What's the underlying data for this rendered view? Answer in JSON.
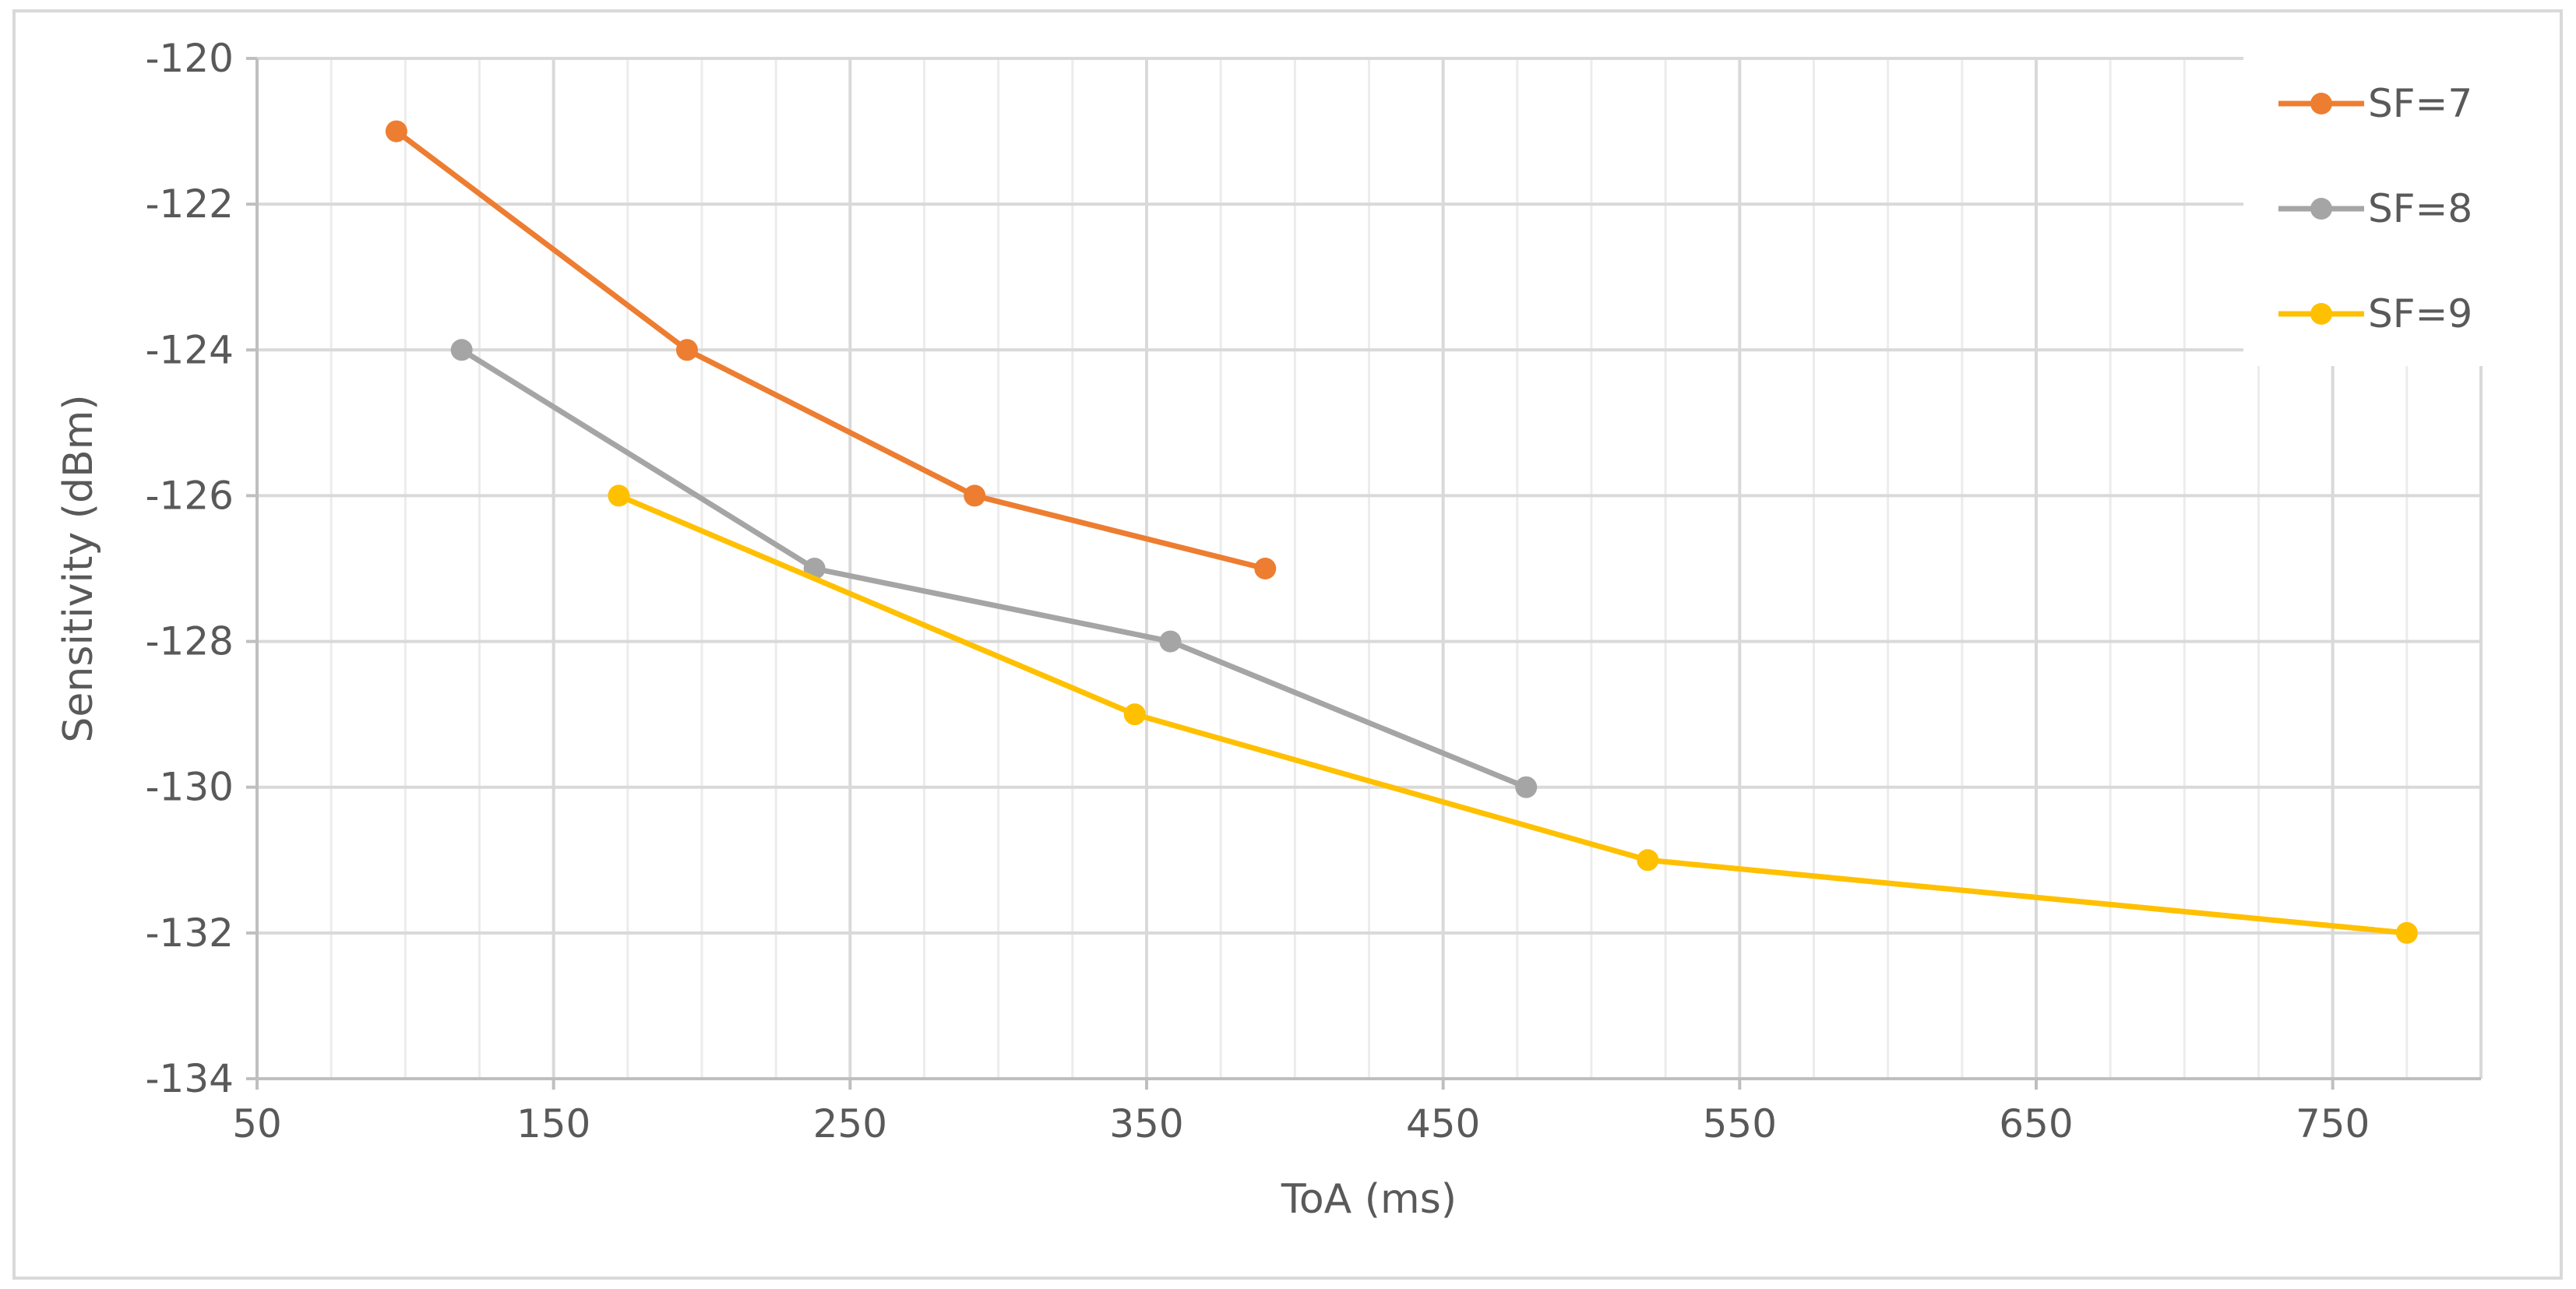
{
  "chart_data": {
    "type": "line",
    "title": "",
    "xlabel": "ToA  (ms)",
    "ylabel": "Sensitivity  (dBm)",
    "xlim": [
      50,
      800
    ],
    "ylim": [
      -134,
      -120
    ],
    "x_ticks": [
      50,
      150,
      250,
      350,
      450,
      550,
      650,
      750
    ],
    "y_ticks": [
      -120,
      -122,
      -124,
      -126,
      -128,
      -130,
      -132,
      -134
    ],
    "x_minor_step": 25,
    "y_minor_step": 2,
    "grid": true,
    "legend_position": "top-right",
    "series": [
      {
        "name": "SF=7",
        "color": "#ED7D31",
        "x": [
          97,
          195,
          292,
          390
        ],
        "y": [
          -121,
          -124,
          -126,
          -127
        ]
      },
      {
        "name": "SF=8",
        "color": "#A5A5A5",
        "x": [
          119,
          238,
          358,
          478
        ],
        "y": [
          -124,
          -127,
          -128,
          -130
        ]
      },
      {
        "name": "SF=9",
        "color": "#FFC000",
        "x": [
          172,
          346,
          519,
          775
        ],
        "y": [
          -126,
          -129,
          -131,
          -132
        ]
      }
    ]
  }
}
